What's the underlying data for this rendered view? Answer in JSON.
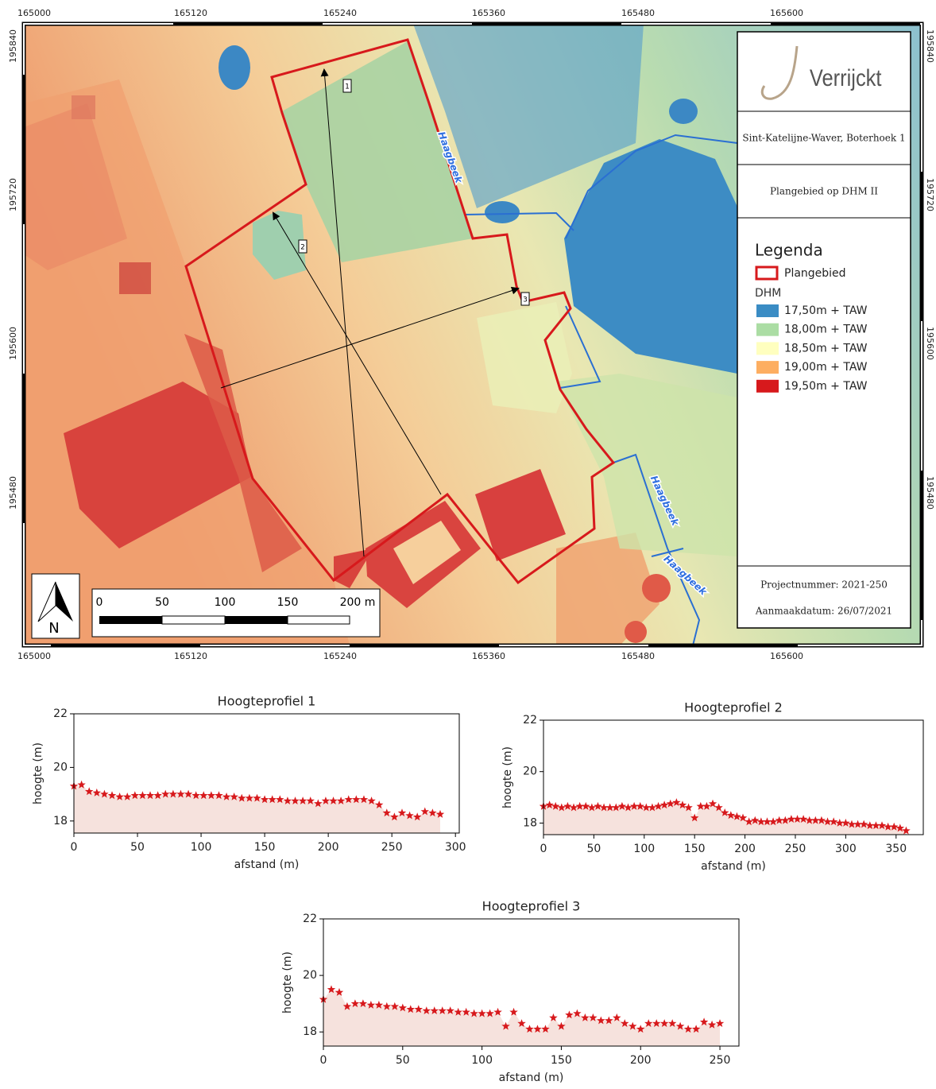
{
  "map": {
    "x_ticks": [
      165000,
      165120,
      165240,
      165360,
      165480,
      165600
    ],
    "y_ticks": [
      195840,
      195720,
      195600,
      195480
    ],
    "title_block": {
      "logo": "Verrijckt",
      "location": "Sint-Katelijne-Waver, Boterhoek 1",
      "subtitle": "Plangebied op DHM II",
      "project": "Projectnummer: 2021-250",
      "date": "Aanmaakdatum: 26/07/2021"
    },
    "legend": {
      "title": "Legenda",
      "boundary": "Plangebied",
      "boundary_color": "#d7191c",
      "dhm_title": "DHM",
      "classes": [
        {
          "label": "17,50m + TAW",
          "color": "#3a8cc4"
        },
        {
          "label": "18,00m + TAW",
          "color": "#abdda4"
        },
        {
          "label": "18,50m + TAW",
          "color": "#ffffbf"
        },
        {
          "label": "19,00m + TAW",
          "color": "#fdae61"
        },
        {
          "label": "19,50m + TAW",
          "color": "#d7191c"
        }
      ]
    },
    "streams": [
      "Haagbeek",
      "Haagbeek",
      "Haagbeek"
    ],
    "profile_labels": [
      "1",
      "2",
      "3"
    ],
    "north": "N",
    "scale_bar": [
      "0",
      "50",
      "100",
      "150",
      "200 m"
    ]
  },
  "chart_data": [
    {
      "type": "line",
      "title": "Hoogteprofiel 1",
      "x_label": "afstand (m)",
      "y_label": "hoogte (m)",
      "color": "#d7191c",
      "fill": "#f6e2dd",
      "x": [
        0,
        6,
        12,
        18,
        24,
        30,
        36,
        42,
        48,
        54,
        60,
        66,
        72,
        78,
        84,
        90,
        96,
        102,
        108,
        114,
        120,
        126,
        132,
        138,
        144,
        150,
        156,
        162,
        168,
        174,
        180,
        186,
        192,
        198,
        204,
        210,
        216,
        222,
        228,
        234,
        240,
        246,
        252,
        258,
        264,
        270,
        276,
        282,
        288
      ],
      "values": [
        19.3,
        19.35,
        19.1,
        19.05,
        19.0,
        18.95,
        18.9,
        18.9,
        18.95,
        18.95,
        18.95,
        18.95,
        19.0,
        19.0,
        19.0,
        19.0,
        18.95,
        18.95,
        18.95,
        18.95,
        18.9,
        18.9,
        18.85,
        18.85,
        18.85,
        18.8,
        18.8,
        18.8,
        18.75,
        18.75,
        18.75,
        18.75,
        18.65,
        18.75,
        18.75,
        18.75,
        18.8,
        18.8,
        18.8,
        18.75,
        18.6,
        18.3,
        18.15,
        18.3,
        18.2,
        18.15,
        18.35,
        18.3,
        18.25
      ],
      "xlim": [
        0,
        303
      ],
      "ylim": [
        17.55,
        22
      ],
      "xticks": [
        0,
        50,
        100,
        150,
        200,
        250,
        300
      ],
      "yticks": [
        18,
        20,
        22
      ]
    },
    {
      "type": "line",
      "title": "Hoogteprofiel 2",
      "x_label": "afstand (m)",
      "y_label": "hoogte (m)",
      "color": "#d7191c",
      "fill": "#f6e2dd",
      "x": [
        0,
        6,
        12,
        18,
        24,
        30,
        36,
        42,
        48,
        54,
        60,
        66,
        72,
        78,
        84,
        90,
        96,
        102,
        108,
        114,
        120,
        126,
        132,
        138,
        144,
        150,
        156,
        162,
        168,
        174,
        180,
        186,
        192,
        198,
        204,
        210,
        216,
        222,
        228,
        234,
        240,
        246,
        252,
        258,
        264,
        270,
        276,
        282,
        288,
        294,
        300,
        306,
        312,
        318,
        324,
        330,
        336,
        342,
        348,
        354,
        360
      ],
      "values": [
        18.65,
        18.7,
        18.65,
        18.6,
        18.65,
        18.6,
        18.65,
        18.65,
        18.6,
        18.65,
        18.6,
        18.6,
        18.6,
        18.65,
        18.6,
        18.65,
        18.65,
        18.6,
        18.6,
        18.65,
        18.7,
        18.75,
        18.8,
        18.7,
        18.6,
        18.2,
        18.65,
        18.65,
        18.75,
        18.6,
        18.4,
        18.3,
        18.25,
        18.2,
        18.05,
        18.1,
        18.05,
        18.05,
        18.05,
        18.1,
        18.1,
        18.15,
        18.15,
        18.15,
        18.1,
        18.1,
        18.1,
        18.05,
        18.05,
        18.0,
        18.0,
        17.95,
        17.95,
        17.95,
        17.9,
        17.9,
        17.9,
        17.85,
        17.85,
        17.8,
        17.7
      ],
      "xlim": [
        0,
        377
      ],
      "ylim": [
        17.55,
        22
      ],
      "xticks": [
        0,
        50,
        100,
        150,
        200,
        250,
        300,
        350
      ],
      "yticks": [
        18,
        20,
        22
      ]
    },
    {
      "type": "line",
      "title": "Hoogteprofiel 3",
      "x_label": "afstand (m)",
      "y_label": "hoogte (m)",
      "color": "#d7191c",
      "fill": "#f6e2dd",
      "x": [
        0,
        5,
        10,
        15,
        20,
        25,
        30,
        35,
        40,
        45,
        50,
        55,
        60,
        65,
        70,
        75,
        80,
        85,
        90,
        95,
        100,
        105,
        110,
        115,
        120,
        125,
        130,
        135,
        140,
        145,
        150,
        155,
        160,
        165,
        170,
        175,
        180,
        185,
        190,
        195,
        200,
        205,
        210,
        215,
        220,
        225,
        230,
        235,
        240,
        245,
        250
      ],
      "values": [
        19.15,
        19.5,
        19.4,
        18.9,
        19.0,
        19.0,
        18.95,
        18.95,
        18.9,
        18.9,
        18.85,
        18.8,
        18.8,
        18.75,
        18.75,
        18.75,
        18.75,
        18.7,
        18.7,
        18.65,
        18.65,
        18.65,
        18.7,
        18.2,
        18.7,
        18.3,
        18.1,
        18.1,
        18.1,
        18.5,
        18.2,
        18.6,
        18.65,
        18.5,
        18.5,
        18.4,
        18.4,
        18.5,
        18.3,
        18.2,
        18.1,
        18.3,
        18.3,
        18.3,
        18.3,
        18.2,
        18.1,
        18.1,
        18.35,
        18.25,
        18.3
      ],
      "xlim": [
        0,
        262
      ],
      "ylim": [
        17.5,
        22
      ],
      "xticks": [
        0,
        50,
        100,
        150,
        200,
        250
      ],
      "yticks": [
        18,
        20,
        22
      ]
    }
  ]
}
